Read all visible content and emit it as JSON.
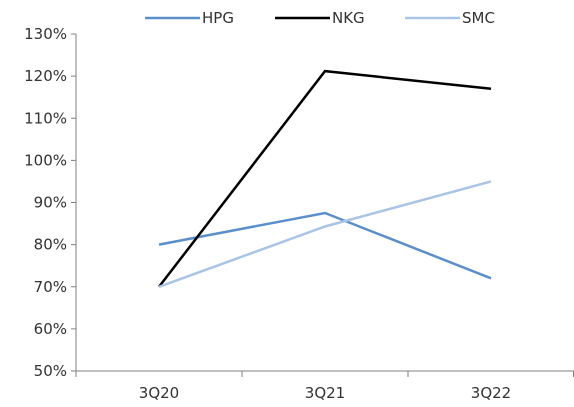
{
  "chart_data": {
    "type": "line",
    "categories": [
      "3Q20",
      "3Q21",
      "3Q22"
    ],
    "series": [
      {
        "name": "HPG",
        "values": [
          80,
          87.5,
          72
        ],
        "color": "#5B8FC9"
      },
      {
        "name": "NKG",
        "values": [
          70,
          121.2,
          117
        ],
        "color": "#000000"
      },
      {
        "name": "SMC",
        "values": [
          70,
          84.3,
          95
        ],
        "color": "#A9C4E4"
      }
    ],
    "ylim": [
      50,
      130
    ],
    "yticks": [
      50,
      60,
      70,
      80,
      90,
      100,
      110,
      120,
      130
    ],
    "ytick_suffix": "%",
    "grid": false,
    "legend_position": "top"
  }
}
